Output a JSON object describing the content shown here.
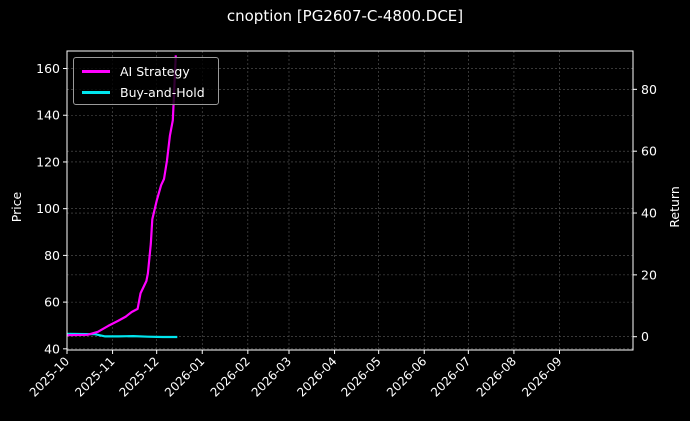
{
  "title": "cnoption [PG2607-C-4800.DCE]",
  "legend": {
    "items": [
      {
        "label": "AI Strategy",
        "color": "#ff00ff"
      },
      {
        "label": "Buy-and-Hold",
        "color": "#00e5ee"
      }
    ]
  },
  "axes": {
    "left": {
      "label": "Price",
      "ticks": [
        40,
        60,
        80,
        100,
        120,
        140,
        160
      ],
      "range": [
        39.5,
        167.5
      ]
    },
    "right": {
      "label": "Return",
      "ticks": [
        0,
        20,
        40,
        60,
        80
      ],
      "range": [
        -4.3,
        92.4
      ]
    },
    "x": {
      "ticks": [
        "2025-10",
        "2025-11",
        "2025-12",
        "2026-01",
        "2026-02",
        "2026-03",
        "2026-04",
        "2026-05",
        "2026-06",
        "2026-07",
        "2026-08",
        "2026-09"
      ]
    }
  },
  "colors": {
    "background": "#000000",
    "grid": "#5a5a5a",
    "axis": "#ffffff",
    "ai": "#ff00ff",
    "bh": "#00e5ee"
  },
  "chart_data": {
    "type": "line",
    "title": "cnoption [PG2607-C-4800.DCE]",
    "xlabel": "",
    "ylabel": "Price",
    "ylabel_right": "Return",
    "ylim": [
      39.5,
      167.5
    ],
    "ylim_right": [
      -4.3,
      92.4
    ],
    "grid": true,
    "legend_position": "upper left",
    "x_ticks": [
      "2025-10",
      "2025-11",
      "2025-12",
      "2026-01",
      "2026-02",
      "2026-03",
      "2026-04",
      "2026-05",
      "2026-06",
      "2026-07",
      "2026-08",
      "2026-09"
    ],
    "series": [
      {
        "name": "AI Strategy",
        "axis": "right",
        "color": "#ff00ff",
        "x": [
          "2025-10-01",
          "2025-10-15",
          "2025-10-22",
          "2025-10-29",
          "2025-11-05",
          "2025-11-10",
          "2025-11-14",
          "2025-11-18",
          "2025-11-20",
          "2025-11-24",
          "2025-11-25",
          "2025-11-27",
          "2025-11-28",
          "2025-12-01",
          "2025-12-04",
          "2025-12-06",
          "2025-12-08",
          "2025-12-10",
          "2025-12-12",
          "2025-12-14"
        ],
        "values": [
          0.5,
          0.6,
          1.6,
          3.5,
          5.2,
          6.5,
          8.0,
          9.0,
          14.0,
          18.0,
          20.5,
          30.0,
          38.0,
          44.0,
          49.0,
          51.0,
          57.0,
          65.0,
          70.0,
          91.0
        ]
      },
      {
        "name": "Buy-and-Hold",
        "axis": "right",
        "color": "#00e5ee",
        "x": [
          "2025-10-01",
          "2025-10-20",
          "2025-10-27",
          "2025-11-05",
          "2025-11-15",
          "2025-11-25",
          "2025-12-05",
          "2025-12-15"
        ],
        "values": [
          0.9,
          0.8,
          0.1,
          0.1,
          0.2,
          0.0,
          -0.1,
          -0.1
        ]
      }
    ]
  }
}
